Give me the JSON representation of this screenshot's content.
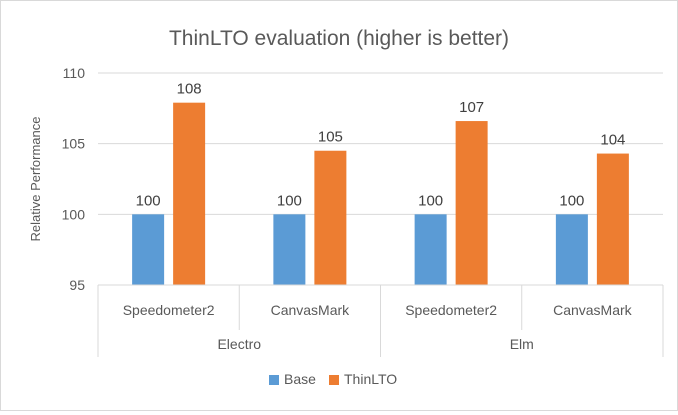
{
  "chart_data": {
    "type": "bar",
    "title": "ThinLTO evaluation (higher is better)",
    "ylabel": "Relative Performance",
    "xlabel": "",
    "ylim": [
      95,
      110
    ],
    "yticks": [
      95,
      100,
      105,
      110
    ],
    "grid": true,
    "legend_position": "bottom",
    "groups": [
      {
        "label": "Electro",
        "categories": [
          "Speedometer2",
          "CanvasMark"
        ]
      },
      {
        "label": "Elm",
        "categories": [
          "Speedometer2",
          "CanvasMark"
        ]
      }
    ],
    "categories": [
      "Speedometer2",
      "CanvasMark",
      "Speedometer2",
      "CanvasMark"
    ],
    "series": [
      {
        "name": "Base",
        "color": "#5b9bd5",
        "values": [
          100,
          100,
          100,
          100
        ],
        "labels": [
          "100",
          "100",
          "100",
          "100"
        ]
      },
      {
        "name": "ThinLTO",
        "color": "#ed7d31",
        "values": [
          107.9,
          104.5,
          106.6,
          104.3
        ],
        "labels": [
          "108",
          "105",
          "107",
          "104"
        ]
      }
    ]
  }
}
